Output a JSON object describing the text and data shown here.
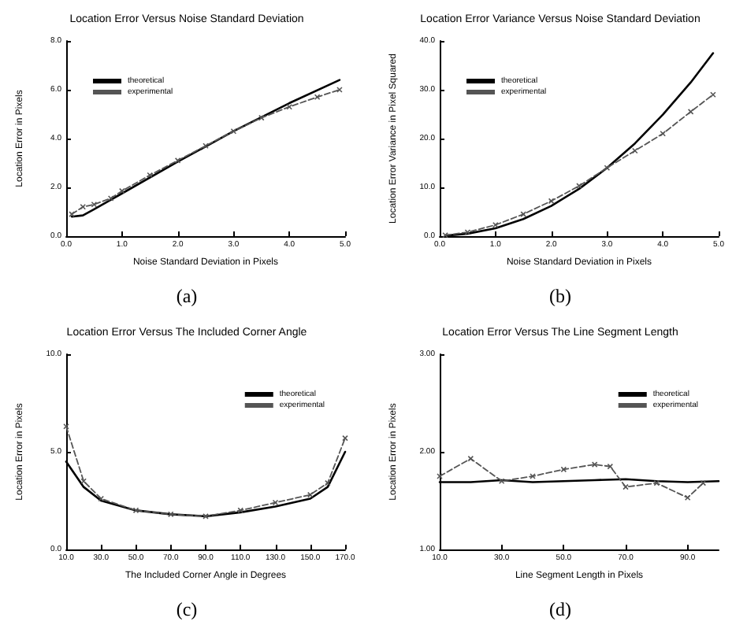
{
  "chart_data": [
    {
      "type": "line",
      "title": "Location Error Versus Noise Standard Deviation",
      "xlabel": "Noise Standard Deviation in Pixels",
      "ylabel": "Location Error in Pixels",
      "annotations": [
        "(a)"
      ],
      "xlim": [
        0,
        5
      ],
      "xticks": [
        {
          "value": 0,
          "label": "0.0"
        },
        {
          "value": 1,
          "label": "1.0"
        },
        {
          "value": 2,
          "label": "2.0"
        },
        {
          "value": 3,
          "label": "3.0"
        },
        {
          "value": 4,
          "label": "4.0"
        },
        {
          "value": 5,
          "label": "5.0"
        }
      ],
      "ylim": [
        0,
        8
      ],
      "yticks": [
        {
          "value": 0,
          "label": "0.0"
        },
        {
          "value": 2,
          "label": "2.0"
        },
        {
          "value": 4,
          "label": "4.0"
        },
        {
          "value": 6,
          "label": "6.0"
        },
        {
          "value": 8,
          "label": "8.0"
        }
      ],
      "legend": "top left",
      "grid": false,
      "series": [
        {
          "name": "theoretical",
          "color": "#000000",
          "line_style": "solid",
          "marker": "none",
          "x": [
            0.1,
            0.3,
            0.5,
            1.0,
            2.0,
            3.0,
            4.0,
            4.9
          ],
          "values": [
            0.8,
            0.85,
            1.1,
            1.75,
            3.05,
            4.3,
            5.45,
            6.4
          ]
        },
        {
          "name": "experimental",
          "color": "#555555",
          "line_style": "dashed",
          "marker": "cross",
          "x": [
            0.1,
            0.3,
            0.5,
            0.8,
            1.0,
            1.5,
            2.0,
            2.5,
            3.0,
            3.5,
            4.0,
            4.5,
            4.9
          ],
          "values": [
            0.9,
            1.2,
            1.3,
            1.55,
            1.85,
            2.5,
            3.1,
            3.7,
            4.3,
            4.85,
            5.3,
            5.7,
            6.0
          ]
        }
      ]
    },
    {
      "type": "line",
      "title": "Location Error Variance Versus Noise Standard Deviation",
      "xlabel": "Noise Standard Deviation in Pixels",
      "ylabel": "Location Error Variance in Pixel Squared",
      "annotations": [
        "(b)"
      ],
      "xlim": [
        0,
        5
      ],
      "xticks": [
        {
          "value": 0,
          "label": "0.0"
        },
        {
          "value": 1,
          "label": "1.0"
        },
        {
          "value": 2,
          "label": "2.0"
        },
        {
          "value": 3,
          "label": "3.0"
        },
        {
          "value": 4,
          "label": "4.0"
        },
        {
          "value": 5,
          "label": "5.0"
        }
      ],
      "ylim": [
        0,
        40
      ],
      "yticks": [
        {
          "value": 0,
          "label": "0.0"
        },
        {
          "value": 10,
          "label": "10.0"
        },
        {
          "value": 20,
          "label": "20.0"
        },
        {
          "value": 30,
          "label": "30.0"
        },
        {
          "value": 40,
          "label": "40.0"
        }
      ],
      "legend": "top left",
      "grid": false,
      "series": [
        {
          "name": "theoretical",
          "color": "#000000",
          "line_style": "solid",
          "marker": "none",
          "x": [
            0.1,
            0.5,
            1.0,
            1.5,
            2.0,
            2.5,
            3.0,
            3.5,
            4.0,
            4.5,
            4.9
          ],
          "values": [
            0.1,
            0.5,
            1.6,
            3.5,
            6.2,
            9.7,
            14.0,
            19.0,
            24.9,
            31.5,
            37.5
          ]
        },
        {
          "name": "experimental",
          "color": "#555555",
          "line_style": "dashed",
          "marker": "cross",
          "x": [
            0.1,
            0.5,
            1.0,
            1.5,
            2.0,
            2.5,
            3.0,
            3.5,
            4.0,
            4.5,
            4.9
          ],
          "values": [
            0.2,
            0.8,
            2.3,
            4.5,
            7.2,
            10.3,
            14.0,
            17.5,
            21.0,
            25.5,
            29.0
          ]
        }
      ]
    },
    {
      "type": "line",
      "title": "Location Error Versus The Included Corner Angle",
      "xlabel": "The Included Corner Angle in Degrees",
      "ylabel": "Location Error in Pixels",
      "annotations": [
        "(c)"
      ],
      "xlim": [
        10,
        170
      ],
      "xticks": [
        {
          "value": 10,
          "label": "10.0"
        },
        {
          "value": 30,
          "label": "30.0"
        },
        {
          "value": 50,
          "label": "50.0"
        },
        {
          "value": 70,
          "label": "70.0"
        },
        {
          "value": 90,
          "label": "90.0"
        },
        {
          "value": 110,
          "label": "110.0"
        },
        {
          "value": 130,
          "label": "130.0"
        },
        {
          "value": 150,
          "label": "150.0"
        },
        {
          "value": 170,
          "label": "170.0"
        }
      ],
      "ylim": [
        0,
        10
      ],
      "yticks": [
        {
          "value": 0,
          "label": "0.0"
        },
        {
          "value": 5,
          "label": "5.0"
        },
        {
          "value": 10,
          "label": "10.0"
        }
      ],
      "legend": "top right",
      "grid": false,
      "series": [
        {
          "name": "theoretical",
          "color": "#000000",
          "line_style": "solid",
          "marker": "none",
          "x": [
            10,
            20,
            30,
            50,
            70,
            90,
            110,
            130,
            150,
            160,
            170
          ],
          "values": [
            4.5,
            3.2,
            2.5,
            2.0,
            1.8,
            1.7,
            1.9,
            2.2,
            2.6,
            3.2,
            5.0
          ]
        },
        {
          "name": "experimental",
          "color": "#555555",
          "line_style": "dashed",
          "marker": "cross",
          "x": [
            10,
            20,
            30,
            50,
            70,
            90,
            110,
            130,
            150,
            160,
            170
          ],
          "values": [
            6.3,
            3.5,
            2.6,
            2.0,
            1.8,
            1.7,
            2.0,
            2.4,
            2.8,
            3.4,
            5.7
          ]
        }
      ]
    },
    {
      "type": "line",
      "title": "Location Error Versus The Line Segment Length",
      "xlabel": "Line Segment Length in Pixels",
      "ylabel": "Location Error in Pixels",
      "annotations": [
        "(d)"
      ],
      "xlim": [
        10,
        100
      ],
      "xticks": [
        {
          "value": 10,
          "label": "10.0"
        },
        {
          "value": 30,
          "label": "30.0"
        },
        {
          "value": 50,
          "label": "50.0"
        },
        {
          "value": 70,
          "label": "70.0"
        },
        {
          "value": 90,
          "label": "90.0"
        }
      ],
      "ylim": [
        1,
        3
      ],
      "yticks": [
        {
          "value": 1,
          "label": "1.00"
        },
        {
          "value": 2,
          "label": "2.00"
        },
        {
          "value": 3,
          "label": "3.00"
        }
      ],
      "legend": "top right",
      "grid": false,
      "series": [
        {
          "name": "theoretical",
          "color": "#000000",
          "line_style": "solid",
          "marker": "none",
          "x": [
            10,
            20,
            30,
            40,
            50,
            60,
            70,
            80,
            90,
            100
          ],
          "values": [
            1.69,
            1.69,
            1.71,
            1.69,
            1.7,
            1.71,
            1.72,
            1.7,
            1.69,
            1.7
          ]
        },
        {
          "name": "experimental",
          "color": "#555555",
          "line_style": "dashed",
          "marker": "cross",
          "x": [
            10,
            20,
            30,
            40,
            50,
            60,
            65,
            70,
            80,
            90,
            95
          ],
          "values": [
            1.75,
            1.93,
            1.7,
            1.75,
            1.82,
            1.87,
            1.85,
            1.64,
            1.68,
            1.53,
            1.68
          ]
        }
      ]
    }
  ]
}
